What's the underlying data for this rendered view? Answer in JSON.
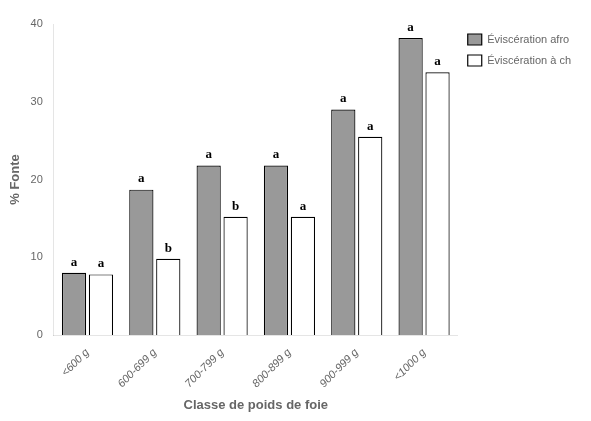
{
  "chart_data": {
    "type": "bar",
    "xlabel": "Classe de poids de foie",
    "ylabel": "% Fonte",
    "categories": [
      "<600 g",
      "600-699 g",
      "700-799 g",
      "800-899 g",
      "900-999 g",
      "<1000 g"
    ],
    "series": [
      {
        "name": "Éviscération afro",
        "color": "#999999",
        "values": [
          8.0,
          18.7,
          21.8,
          21.8,
          29.0,
          38.2
        ],
        "annotations": [
          "a",
          "a",
          "a",
          "a",
          "a",
          "a"
        ]
      },
      {
        "name": "Éviscération à ch",
        "color": "#ffffff",
        "values": [
          7.8,
          9.8,
          15.2,
          15.2,
          25.5,
          33.8
        ],
        "annotations": [
          "a",
          "b",
          "b",
          "a",
          "a",
          "a"
        ]
      }
    ],
    "ylim": [
      0,
      40
    ],
    "yticks": [
      0,
      10,
      20,
      30,
      40
    ],
    "grid": false,
    "legend": "right"
  }
}
